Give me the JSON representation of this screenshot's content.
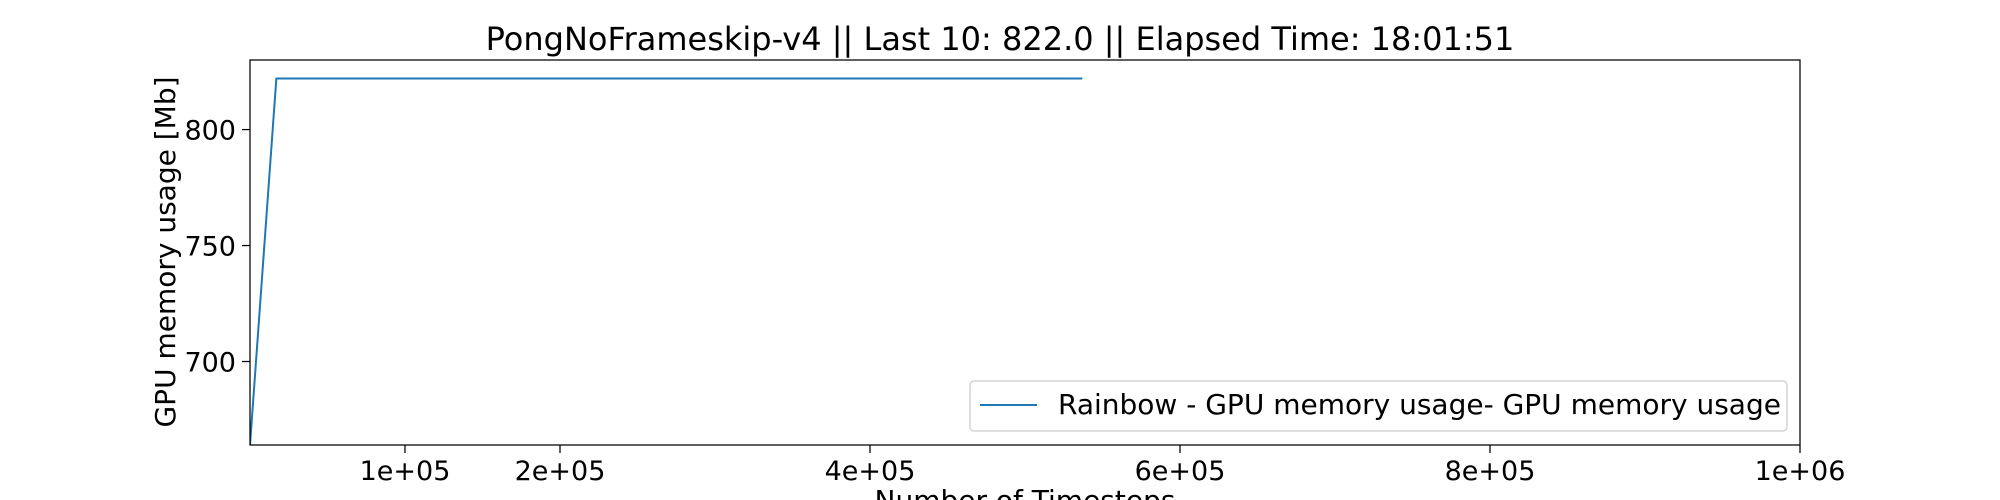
{
  "chart_data": {
    "type": "line",
    "title": "PongNoFrameskip-v4 || Last 10: 822.0 || Elapsed Time: 18:01:51",
    "xlabel": "Number of Timesteps",
    "ylabel": "GPU memory usage [Mb]",
    "xlim": [
      0,
      1000000
    ],
    "ylim": [
      664,
      830
    ],
    "xticks": [
      {
        "value": 100000,
        "label": "1e+05"
      },
      {
        "value": 200000,
        "label": "2e+05"
      },
      {
        "value": 400000,
        "label": "4e+05"
      },
      {
        "value": 600000,
        "label": "6e+05"
      },
      {
        "value": 800000,
        "label": "8e+05"
      },
      {
        "value": 1000000,
        "label": "1e+06"
      }
    ],
    "yticks": [
      {
        "value": 700,
        "label": "700"
      },
      {
        "value": 750,
        "label": "750"
      },
      {
        "value": 800,
        "label": "800"
      }
    ],
    "legend_position": "lower-right",
    "grid": false,
    "series": [
      {
        "name": "Rainbow - GPU memory usage- GPU memory usage",
        "color": "#1f77b4",
        "x": [
          0,
          17000,
          537000
        ],
        "y": [
          664,
          822,
          822
        ]
      }
    ]
  }
}
